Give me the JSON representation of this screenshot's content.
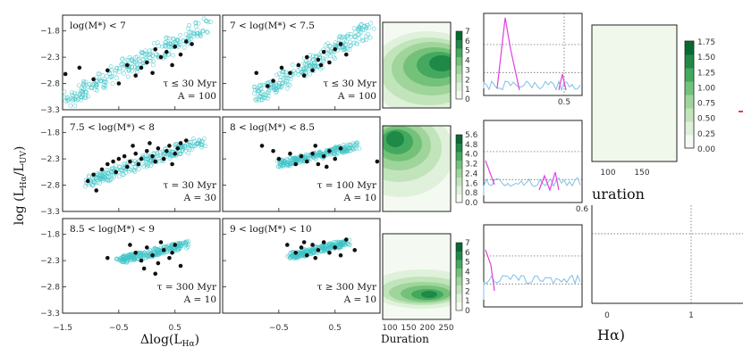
{
  "chart_data": {
    "type": "scatter",
    "ylabel": "log (L",
    "ylabel_sub": "Hα",
    "ylabel_mid": "/L",
    "ylabel_sub2": "UV",
    "ylabel_end": ")",
    "xlabel": "Δlog(L",
    "xlabel_sub": "Hα",
    "xlabel_end": ")",
    "x_ticks": [
      "−1.5",
      "−0.5",
      "0.5",
      "−0.5",
      "0.5"
    ],
    "y_ticks": [
      "−1.8",
      "−2.3",
      "−2.8",
      "−3.3"
    ],
    "panels": [
      {
        "title": "log(M*) < 7",
        "tau": "τ ≤ 30 Myr",
        "amp": "A = 100"
      },
      {
        "title": "7 < log(M*) < 7.5",
        "tau": "τ ≤ 30 Myr",
        "amp": "A = 100"
      },
      {
        "title": "7.5 < log(M*) < 8",
        "tau": "τ = 30 Myr",
        "amp": "A = 30"
      },
      {
        "title": "8 < log(M*) < 8.5",
        "tau": "τ = 100 Myr",
        "amp": "A = 10"
      },
      {
        "title": "8.5 < log(M*) < 9",
        "tau": "τ = 300 Myr",
        "amp": "A = 10"
      },
      {
        "title": "9 < log(M*) < 10",
        "tau": "τ ≥ 300 Myr",
        "amp": "A = 10"
      }
    ],
    "observed_points": [
      [
        [
          -1.45,
          -2.62
        ],
        [
          -1.2,
          -2.5
        ],
        [
          -0.95,
          -2.72
        ],
        [
          -0.7,
          -2.55
        ],
        [
          -0.5,
          -2.8
        ],
        [
          -0.35,
          -2.45
        ],
        [
          -0.2,
          -2.65
        ],
        [
          0.0,
          -2.4
        ],
        [
          0.1,
          -2.6
        ],
        [
          0.25,
          -2.3
        ],
        [
          0.35,
          -2.2
        ],
        [
          0.45,
          -2.45
        ],
        [
          0.5,
          -2.1
        ],
        [
          0.6,
          -2.25
        ],
        [
          0.7,
          -2.0
        ],
        [
          0.15,
          -2.15
        ],
        [
          -0.1,
          -2.5
        ],
        [
          0.8,
          -2.05
        ]
      ],
      [
        [
          -0.9,
          -2.6
        ],
        [
          -0.6,
          -2.75
        ],
        [
          -0.45,
          -2.5
        ],
        [
          -0.3,
          -2.6
        ],
        [
          -0.15,
          -2.45
        ],
        [
          0.0,
          -2.3
        ],
        [
          0.1,
          -2.55
        ],
        [
          0.2,
          -2.35
        ],
        [
          0.3,
          -2.2
        ],
        [
          0.4,
          -2.4
        ],
        [
          0.5,
          -2.15
        ],
        [
          0.6,
          -2.05
        ],
        [
          -0.05,
          -2.65
        ],
        [
          0.25,
          -2.45
        ],
        [
          0.7,
          -2.25
        ],
        [
          -0.7,
          -2.85
        ]
      ],
      [
        [
          -1.05,
          -2.72
        ],
        [
          -0.95,
          -2.6
        ],
        [
          -0.8,
          -2.5
        ],
        [
          -0.7,
          -2.4
        ],
        [
          -0.6,
          -2.35
        ],
        [
          -0.5,
          -2.3
        ],
        [
          -0.4,
          -2.25
        ],
        [
          -0.3,
          -2.35
        ],
        [
          -0.2,
          -2.2
        ],
        [
          -0.1,
          -2.3
        ],
        [
          0.0,
          -2.15
        ],
        [
          0.1,
          -2.25
        ],
        [
          0.2,
          -2.1
        ],
        [
          0.3,
          -2.3
        ],
        [
          0.4,
          -2.05
        ],
        [
          0.5,
          -2.2
        ],
        [
          0.6,
          -2.0
        ],
        [
          0.7,
          -1.95
        ],
        [
          -0.35,
          -2.45
        ],
        [
          -0.15,
          -2.4
        ],
        [
          0.15,
          -2.35
        ],
        [
          0.35,
          -2.15
        ],
        [
          -0.55,
          -2.55
        ],
        [
          -0.9,
          -2.9
        ],
        [
          0.45,
          -2.4
        ],
        [
          -0.25,
          -2.05
        ],
        [
          0.05,
          -2.0
        ],
        [
          0.55,
          -2.1
        ]
      ],
      [
        [
          -0.8,
          -2.05
        ],
        [
          -0.6,
          -2.15
        ],
        [
          -0.5,
          -2.3
        ],
        [
          -0.3,
          -2.2
        ],
        [
          -0.1,
          -2.25
        ],
        [
          0.0,
          -2.35
        ],
        [
          0.1,
          -2.2
        ],
        [
          0.2,
          -2.4
        ],
        [
          0.3,
          -2.25
        ],
        [
          0.4,
          -2.15
        ],
        [
          0.5,
          -2.3
        ],
        [
          0.6,
          -2.1
        ],
        [
          1.25,
          -2.35
        ],
        [
          0.15,
          -2.05
        ],
        [
          -0.2,
          -2.4
        ],
        [
          0.35,
          -2.45
        ]
      ],
      [
        [
          -0.7,
          -2.25
        ],
        [
          -0.3,
          -2.0
        ],
        [
          -0.2,
          -2.15
        ],
        [
          -0.1,
          -2.3
        ],
        [
          0.0,
          -2.05
        ],
        [
          0.1,
          -2.2
        ],
        [
          0.2,
          -2.35
        ],
        [
          0.3,
          -2.1
        ],
        [
          0.4,
          -2.25
        ],
        [
          0.5,
          -2.0
        ],
        [
          0.6,
          -2.4
        ],
        [
          -0.05,
          -2.45
        ],
        [
          0.25,
          -1.95
        ],
        [
          0.15,
          -2.55
        ],
        [
          0.45,
          -2.15
        ]
      ],
      [
        [
          -0.35,
          -2.0
        ],
        [
          -0.2,
          -2.15
        ],
        [
          -0.1,
          -2.05
        ],
        [
          0.0,
          -2.2
        ],
        [
          0.1,
          -2.0
        ],
        [
          0.2,
          -2.1
        ],
        [
          0.3,
          -1.95
        ],
        [
          0.4,
          -2.15
        ],
        [
          0.5,
          -2.05
        ],
        [
          0.6,
          -2.2
        ],
        [
          0.7,
          -1.9
        ],
        [
          0.85,
          -2.1
        ],
        [
          0.15,
          -2.25
        ],
        [
          -0.05,
          -1.95
        ]
      ]
    ],
    "heatmap_colorbars": [
      {
        "ticks": [
          "7",
          "6",
          "5",
          "4",
          "3",
          "2",
          "1",
          "0"
        ]
      },
      {
        "ticks": [
          "5.6",
          "4.8",
          "4.0",
          "3.2",
          "2.4",
          "1.6",
          "0.8",
          "0.0"
        ]
      },
      {
        "ticks": [
          "7",
          "6",
          "5",
          "4",
          "3",
          "2",
          "1",
          "0"
        ]
      }
    ],
    "heatmap_xticks": [
      "100",
      "150",
      "200",
      "250"
    ],
    "heatmap_xlabel": "Duration",
    "line_panels": [
      {
        "xtick": "0.5"
      },
      {
        "xtick": "0.6"
      },
      {
        "xtick": ""
      }
    ],
    "big_colorbar": {
      "ticks": [
        "1.75",
        "1.50",
        "1.25",
        "1.00",
        "0.75",
        "0.50",
        "0.25",
        "0.00"
      ]
    },
    "big_panel": {
      "xticks": [
        "100",
        "150"
      ],
      "xlabel": "uration"
    },
    "right_lower": {
      "xticks": [
        "0",
        "1"
      ],
      "xlabel": "Hα)"
    }
  }
}
